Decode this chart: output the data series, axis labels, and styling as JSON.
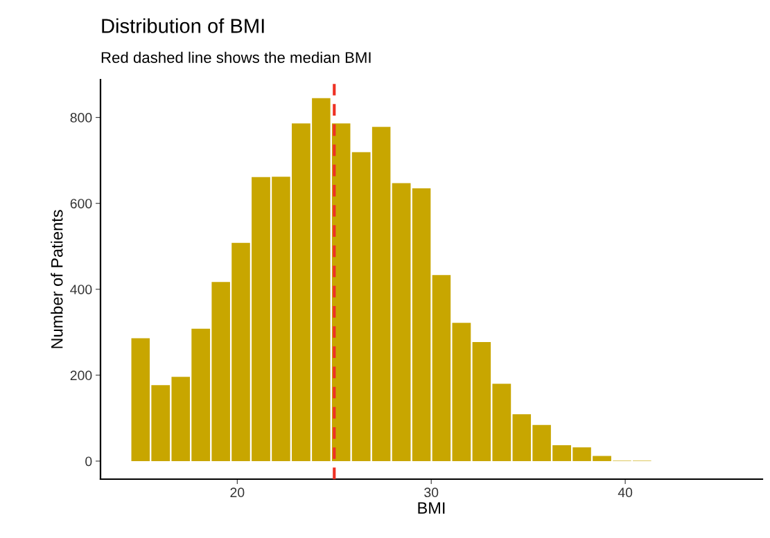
{
  "chart_data": {
    "type": "histogram",
    "title": "Distribution of BMI",
    "subtitle": "Red dashed line shows the median BMI",
    "xlabel": "BMI",
    "ylabel": "Number of Patients",
    "bins": [
      14.5,
      15.53,
      16.57,
      17.6,
      18.64,
      19.67,
      20.7,
      21.74,
      22.77,
      23.81,
      24.84,
      25.87,
      26.91,
      27.94,
      28.98,
      30.01,
      31.04,
      32.08,
      33.11,
      34.15,
      35.18,
      36.21,
      37.25,
      38.28,
      39.32,
      40.35,
      41.38,
      42.42,
      43.45,
      44.49,
      45.52
    ],
    "values": [
      286,
      177,
      196,
      308,
      417,
      508,
      661,
      662,
      786,
      845,
      786,
      719,
      778,
      647,
      635,
      433,
      322,
      277,
      180,
      109,
      84,
      37,
      32,
      12,
      1,
      1,
      0,
      0,
      0,
      0
    ],
    "color": "#c8a600",
    "xlim": [
      12.95,
      47.07
    ],
    "xticks": [
      20,
      30,
      40
    ],
    "ylim": [
      -42,
      888
    ],
    "yticks": [
      0,
      200,
      400,
      600,
      800
    ],
    "ref_lines": [
      {
        "axis": "x",
        "value": 25,
        "color": "#ee3124",
        "line_style": "dashed"
      }
    ],
    "grid": false
  }
}
